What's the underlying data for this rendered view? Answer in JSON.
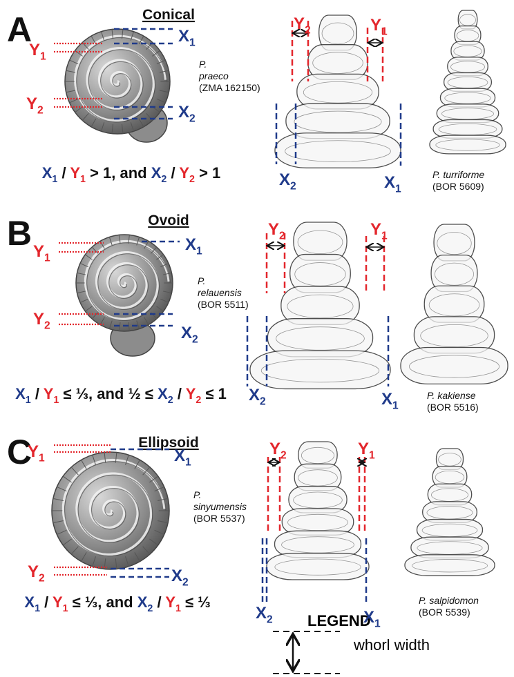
{
  "panels": [
    {
      "letter": "A",
      "title": "Conical",
      "labels": [
        {
          "main": "Y",
          "sub": "1",
          "color": "#e3262c"
        },
        {
          "main": "X",
          "sub": "1",
          "color": "#1f3a8a"
        },
        {
          "main": "Y",
          "sub": "2",
          "color": "#e3262c"
        },
        {
          "main": "X",
          "sub": "2",
          "color": "#1f3a8a"
        },
        {
          "main": "Y",
          "sub": "2",
          "color": "#e3262c"
        },
        {
          "main": "Y",
          "sub": "1",
          "color": "#e3262c"
        },
        {
          "main": "X",
          "sub": "2",
          "color": "#1f3a8a"
        },
        {
          "main": "X",
          "sub": "1",
          "color": "#1f3a8a"
        }
      ],
      "formula": [
        {
          "text": "X",
          "sub": "1",
          "color": "#1f3a8a"
        },
        {
          "text": " / "
        },
        {
          "text": "Y",
          "sub": "1",
          "color": "#e3262c"
        },
        {
          "text": " > 1, and "
        },
        {
          "text": "X",
          "sub": "2",
          "color": "#1f3a8a"
        },
        {
          "text": " / "
        },
        {
          "text": "Y",
          "sub": "2",
          "color": "#e3262c"
        },
        {
          "text": " > 1"
        }
      ],
      "specimens": [
        {
          "name": [
            "P.",
            "praeco"
          ],
          "code": "(ZMA 162150)"
        },
        {
          "name": [
            "P. turriforme"
          ],
          "code": "(BOR 5609)"
        }
      ]
    },
    {
      "letter": "B",
      "title": "Ovoid",
      "labels": [
        {
          "main": "Y",
          "sub": "1",
          "color": "#e3262c"
        },
        {
          "main": "X",
          "sub": "1",
          "color": "#1f3a8a"
        },
        {
          "main": "Y",
          "sub": "2",
          "color": "#e3262c"
        },
        {
          "main": "X",
          "sub": "2",
          "color": "#1f3a8a"
        },
        {
          "main": "Y",
          "sub": "2",
          "color": "#e3262c"
        },
        {
          "main": "Y",
          "sub": "1",
          "color": "#e3262c"
        },
        {
          "main": "X",
          "sub": "2",
          "color": "#1f3a8a"
        },
        {
          "main": "X",
          "sub": "1",
          "color": "#1f3a8a"
        }
      ],
      "formula": [
        {
          "text": "X",
          "sub": "1",
          "color": "#1f3a8a"
        },
        {
          "text": " / "
        },
        {
          "text": "Y",
          "sub": "1",
          "color": "#e3262c"
        },
        {
          "text": " ≤ ⅓, and ½ ≤ "
        },
        {
          "text": "X",
          "sub": "2",
          "color": "#1f3a8a"
        },
        {
          "text": " / "
        },
        {
          "text": "Y",
          "sub": "2",
          "color": "#e3262c"
        },
        {
          "text": " ≤ 1"
        }
      ],
      "specimens": [
        {
          "name": [
            "P.",
            "relauensis"
          ],
          "code": "(BOR 5511)"
        },
        {
          "name": [
            "P. kakiense"
          ],
          "code": "(BOR 5516)"
        }
      ]
    },
    {
      "letter": "C",
      "title": "Ellipsoid",
      "labels": [
        {
          "main": "Y",
          "sub": "1",
          "color": "#e3262c"
        },
        {
          "main": "X",
          "sub": "1",
          "color": "#1f3a8a"
        },
        {
          "main": "Y",
          "sub": "2",
          "color": "#e3262c"
        },
        {
          "main": "X",
          "sub": "2",
          "color": "#1f3a8a"
        },
        {
          "main": "Y",
          "sub": "2",
          "color": "#e3262c"
        },
        {
          "main": "Y",
          "sub": "1",
          "color": "#e3262c"
        },
        {
          "main": "X",
          "sub": "2",
          "color": "#1f3a8a"
        },
        {
          "main": "X",
          "sub": "1",
          "color": "#1f3a8a"
        }
      ],
      "formula": [
        {
          "text": "X",
          "sub": "1",
          "color": "#1f3a8a"
        },
        {
          "text": " / "
        },
        {
          "text": "Y",
          "sub": "1",
          "color": "#e3262c"
        },
        {
          "text": " ≤ ⅓, and "
        },
        {
          "text": "X",
          "sub": "2",
          "color": "#1f3a8a"
        },
        {
          "text": " / "
        },
        {
          "text": "Y",
          "sub": "1",
          "color": "#e3262c"
        },
        {
          "text": " ≤ ⅓"
        }
      ],
      "specimens": [
        {
          "name": [
            "P.",
            "sinyumensis"
          ],
          "code": "(BOR 5537)"
        },
        {
          "name": [
            "P. salpidomon"
          ],
          "code": "(BOR 5539)"
        }
      ]
    }
  ],
  "legend": {
    "title": "LEGEND",
    "label": "whorl width"
  }
}
